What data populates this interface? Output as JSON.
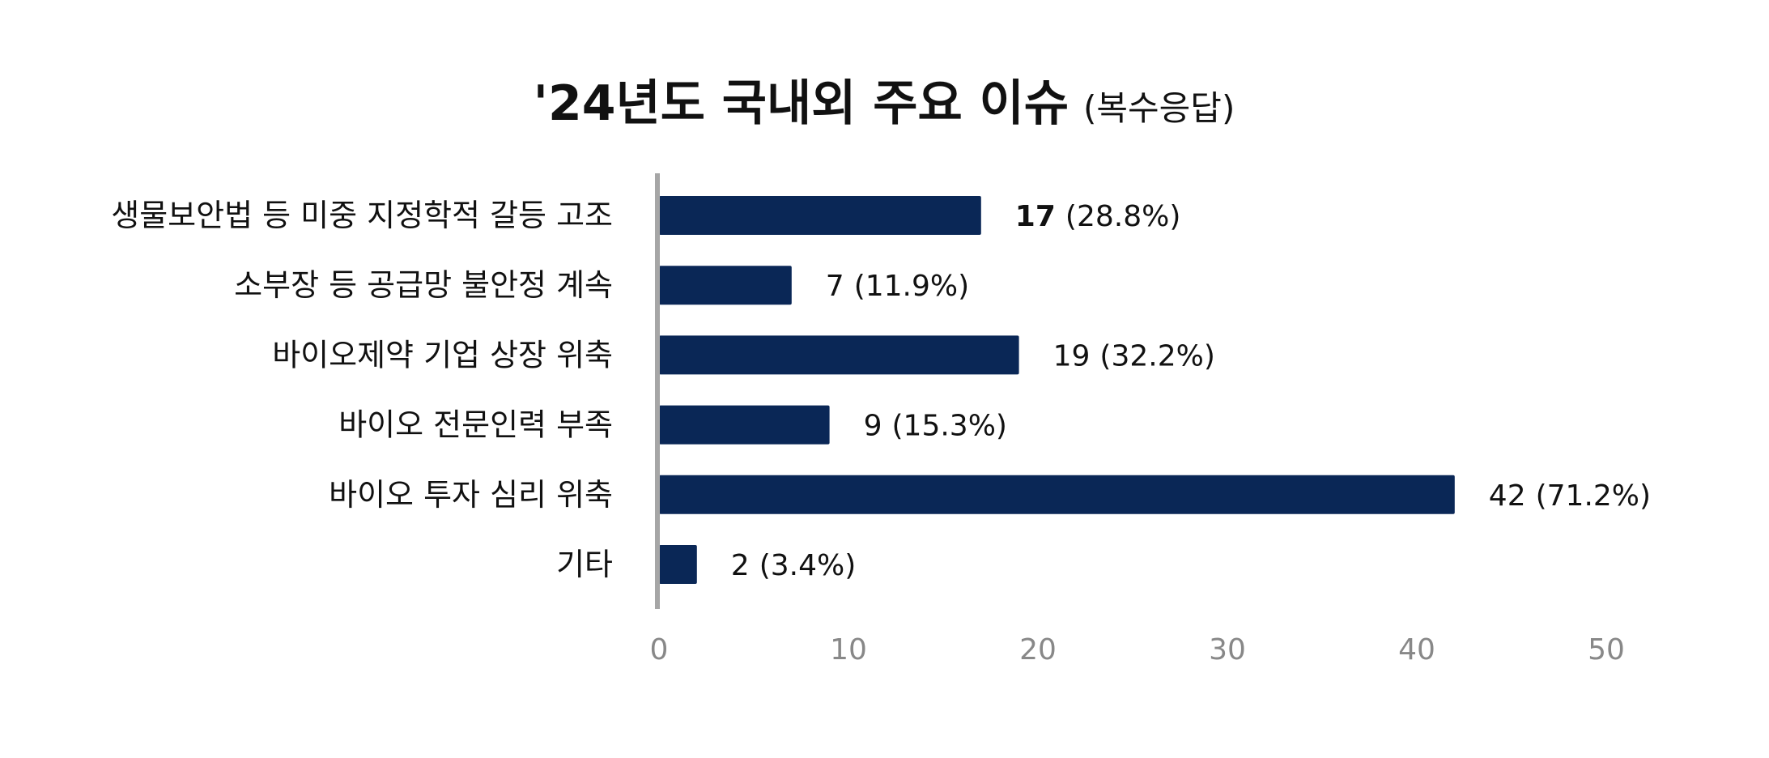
{
  "chart_data": {
    "type": "bar",
    "orientation": "horizontal",
    "title": "'24년도 국내외 주요 이슈",
    "subtitle": "(복수응답)",
    "categories": [
      "생물보안법 등 미중 지정학적 갈등 고조",
      "소부장 등 공급망 불안정 계속",
      "바이오제약 기업 상장 위축",
      "바이오 전문인력 부족",
      "바이오 투자 심리 위축",
      "기타"
    ],
    "values": [
      17,
      7,
      19,
      9,
      42,
      2
    ],
    "value_labels": [
      "17",
      "7",
      "19",
      "9",
      "42",
      "2"
    ],
    "percent_labels": [
      "(28.8%)",
      "(11.9%)",
      "(32.2%)",
      "(15.3%)",
      "(71.2%)",
      "(3.4%)"
    ],
    "xlim": [
      0,
      50
    ],
    "xticks": [
      "0",
      "10",
      "20",
      "30",
      "40",
      "50"
    ],
    "grid": false,
    "legend": "none",
    "bar_color": "#0a2756",
    "axis_color": "#a6a6a6",
    "tick_color": "#888888"
  }
}
